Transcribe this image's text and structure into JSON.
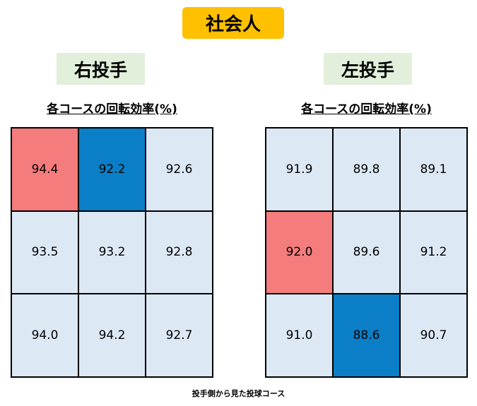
{
  "header": {
    "title": "社会人"
  },
  "panels": [
    {
      "label": "右投手",
      "subtitle": "各コースの回転効率(%)",
      "rows": [
        [
          "94.4",
          "92.2",
          "92.6"
        ],
        [
          "93.5",
          "93.2",
          "92.8"
        ],
        [
          "94.0",
          "94.2",
          "92.7"
        ]
      ]
    },
    {
      "label": "左投手",
      "subtitle": "各コースの回転効率(%)",
      "rows": [
        [
          "91.9",
          "89.8",
          "89.1"
        ],
        [
          "92.0",
          "89.6",
          "91.2"
        ],
        [
          "91.0",
          "88.6",
          "90.7"
        ]
      ]
    }
  ],
  "footer": {
    "note": "投手側から見た投球コース"
  }
}
